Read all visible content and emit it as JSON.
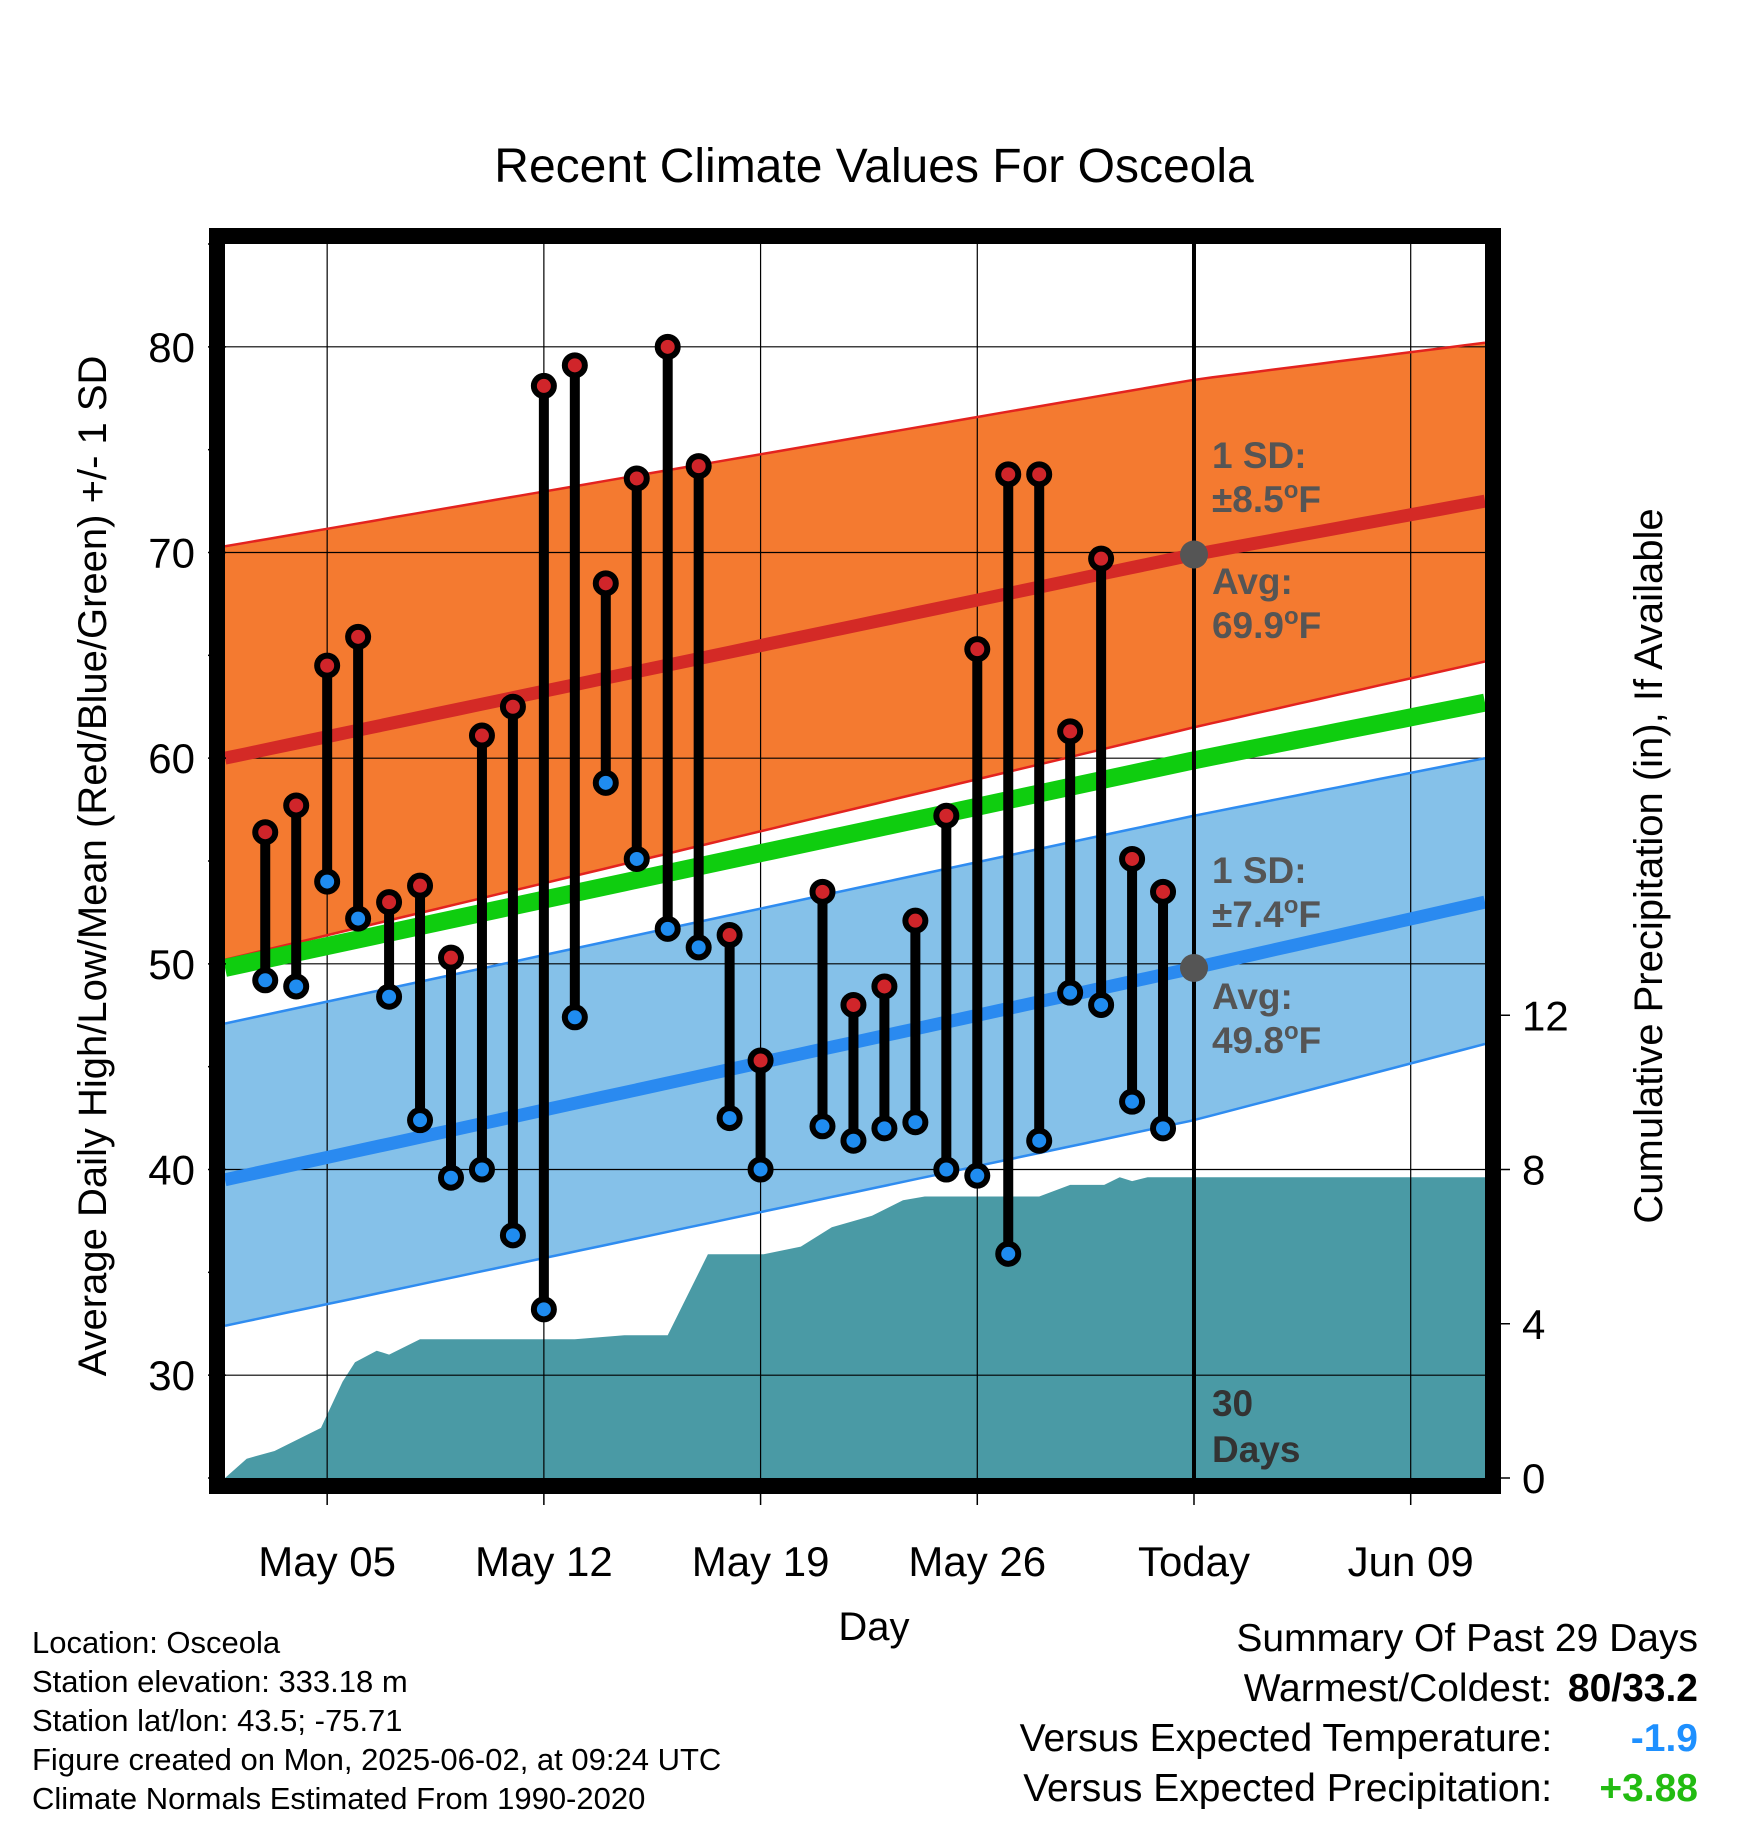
{
  "chart_data": {
    "type": "line",
    "title": "Recent Climate Values For Osceola",
    "xlabel": "Day",
    "ylabel": "Average Daily High/Low/Mean (Red/Blue/Green) +/- 1 SD",
    "y2label": "Cumulative Precipitation (in), If Available",
    "ylim": [
      25,
      85
    ],
    "y2lim": [
      0,
      32
    ],
    "y_ticks": [
      "30",
      "40",
      "50",
      "60",
      "70",
      "80"
    ],
    "y2_ticks": [
      "0",
      "4",
      "8",
      "12"
    ],
    "x_tick_labels": [
      "May 05",
      "May 12",
      "May 19",
      "May 26",
      "Today",
      "Jun 09"
    ],
    "x_ticks_day": [
      5,
      12,
      19,
      26,
      33,
      40
    ],
    "x_range_day": [
      1.7,
      42.4
    ],
    "today_day": 33,
    "grid": true,
    "colors": {
      "high_band": "#f47a30",
      "high_edge": "#e3231f",
      "high_avg": "#d42a26",
      "low_band": "#85c1e9",
      "low_edge": "#2f8cf0",
      "low_avg": "#2a8af0",
      "mean_line": "#0fcd0f",
      "precip": "#4a9aa5",
      "high_dot": "#d0252a",
      "low_dot": "#1f8cf0",
      "today_marker": "#555555"
    },
    "normals": {
      "day": [
        1.7,
        33,
        42.4
      ],
      "avg_high": [
        60.0,
        69.9,
        72.5
      ],
      "avg_high_upper": [
        70.3,
        78.4,
        80.2
      ],
      "avg_high_lower": [
        50.2,
        61.5,
        64.7
      ],
      "avg_mean": [
        49.8,
        59.9,
        62.7
      ],
      "avg_low": [
        39.5,
        49.8,
        53.0
      ],
      "avg_low_upper": [
        47.1,
        57.2,
        60.0
      ],
      "avg_low_lower": [
        32.4,
        42.4,
        46.1
      ]
    },
    "series": [
      {
        "name": "High",
        "day": [
          3,
          4,
          5,
          6,
          7,
          8,
          9,
          10,
          11,
          12,
          13,
          14,
          15,
          16,
          17,
          18,
          19,
          21,
          22,
          23,
          24,
          25,
          26,
          27,
          28,
          29,
          30,
          31,
          32
        ],
        "values": [
          56.4,
          57.7,
          64.5,
          65.9,
          53.0,
          53.8,
          50.3,
          61.1,
          62.5,
          78.1,
          79.1,
          68.5,
          73.6,
          80.0,
          74.2,
          51.4,
          45.3,
          53.5,
          48.0,
          48.9,
          52.1,
          57.2,
          65.3,
          73.8,
          73.8,
          61.3,
          69.7,
          55.1,
          53.5
        ]
      },
      {
        "name": "Low",
        "day": [
          3,
          4,
          5,
          6,
          7,
          8,
          9,
          10,
          11,
          12,
          13,
          14,
          15,
          16,
          17,
          18,
          19,
          21,
          22,
          23,
          24,
          25,
          26,
          27,
          28,
          29,
          30,
          31,
          32
        ],
        "values": [
          49.2,
          48.9,
          54.0,
          52.2,
          48.4,
          42.4,
          39.6,
          40.0,
          36.8,
          33.2,
          47.4,
          58.8,
          55.1,
          51.7,
          50.8,
          42.5,
          40.0,
          42.1,
          41.4,
          42.0,
          42.3,
          40.0,
          39.7,
          35.9,
          41.4,
          48.6,
          48.0,
          43.3,
          42.0
        ]
      },
      {
        "name": "Cumulative Precipitation",
        "axis": "right",
        "day": [
          1.7,
          2.4,
          3.3,
          4.8,
          5.5,
          5.9,
          6.6,
          7.0,
          8.0,
          9.2,
          10.1,
          13.0,
          14.6,
          16.0,
          17.3,
          18.0,
          19.1,
          20.3,
          21.3,
          22.6,
          23.6,
          24.3,
          25.0,
          26.0,
          26.7,
          28.0,
          29.0,
          30.1,
          30.6,
          31.0,
          31.5,
          32.0,
          33.0,
          42.4
        ],
        "values": [
          0.0,
          0.5,
          0.7,
          1.3,
          2.5,
          3.0,
          3.3,
          3.2,
          3.6,
          3.6,
          3.6,
          3.6,
          3.7,
          3.7,
          5.8,
          5.8,
          5.8,
          6.0,
          6.5,
          6.8,
          7.2,
          7.3,
          7.3,
          7.3,
          7.3,
          7.3,
          7.6,
          7.6,
          7.8,
          7.7,
          7.8,
          7.8,
          7.8,
          7.8
        ]
      }
    ],
    "annotations": {
      "high_sd_label": "1 SD:",
      "high_sd_value": "±8.5°F",
      "high_avg_label": "Avg:",
      "high_avg_value": "69.9°F",
      "low_sd_label": "1 SD:",
      "low_sd_value": "±7.4°F",
      "low_avg_label": "Avg:",
      "low_avg_value": "49.8°F",
      "period_number": "30",
      "period_unit": "Days"
    }
  },
  "footer": {
    "location": "Location: Osceola",
    "elevation": "Station elevation: 333.18 m",
    "latlon": "Station lat/lon: 43.5; -75.71",
    "created": "Figure created on Mon, 2025-06-02, at 09:24 UTC",
    "normals": "Climate Normals Estimated From 1990-2020"
  },
  "summary": {
    "title": "Summary Of Past 29 Days",
    "warm_cold_label": "Warmest/Coldest:",
    "warm_cold_value": "80/33.2",
    "temp_label": "Versus Expected Temperature:",
    "temp_value": "-1.9",
    "temp_color": "#1e90ff",
    "precip_label": "Versus Expected Precipitation:",
    "precip_value": "+3.88",
    "precip_color": "#22bb11"
  }
}
